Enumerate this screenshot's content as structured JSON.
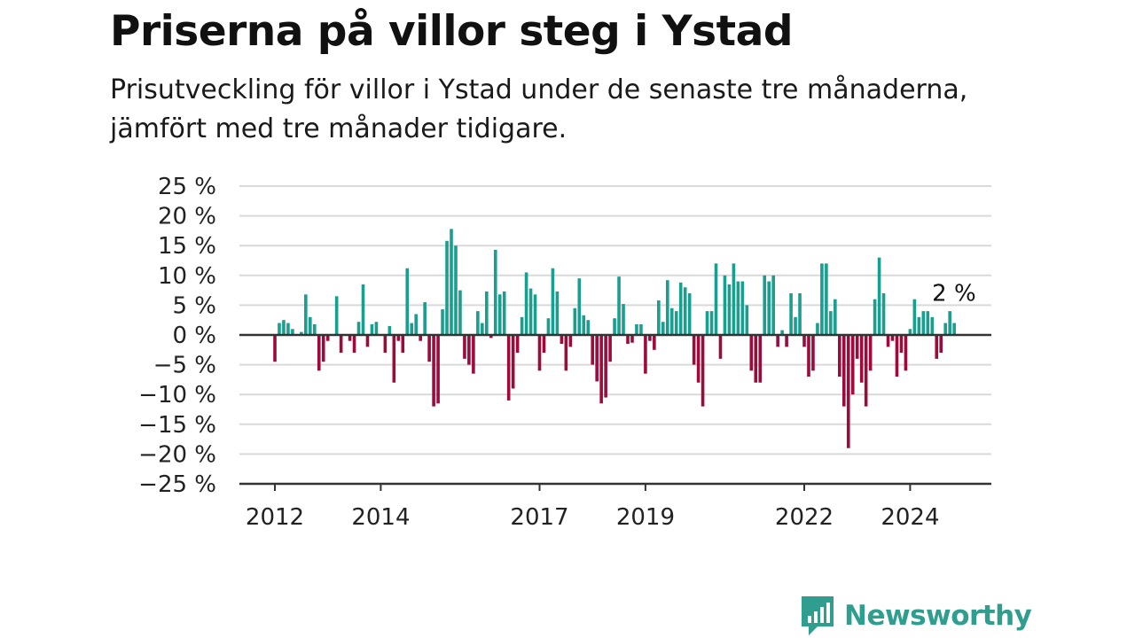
{
  "header": {
    "title": "Priserna på villor steg i Ystad",
    "subtitle": "Prisutveckling för villor i Ystad under de senaste tre månaderna, jämfört med tre månader tidigare."
  },
  "brand": {
    "name": "Newsworthy",
    "icon": "newsworthy-logo-icon",
    "color": "#2f9e8f"
  },
  "colors": {
    "positive": "#1a9e8f",
    "negative": "#9b0c3c",
    "grid": "#d9d9d9",
    "axis": "#333333"
  },
  "chart_data": {
    "type": "bar",
    "title": "Priserna på villor steg i Ystad",
    "ylim": [
      -25,
      25
    ],
    "yticks": [
      25,
      20,
      15,
      10,
      5,
      0,
      -5,
      -10,
      -15,
      -20,
      -25
    ],
    "ytick_labels": [
      "25 %",
      "20 %",
      "15 %",
      "10 %",
      "5 %",
      "0 %",
      "−5 %",
      "−10 %",
      "−15 %",
      "−20 %",
      "−25 %"
    ],
    "xticks": [
      "2012",
      "2014",
      "2017",
      "2019",
      "2022",
      "2024"
    ],
    "annotation": "2 %",
    "start": "2012-01",
    "frequency": "monthly",
    "grid": true,
    "values": [
      -4.5,
      2,
      2.5,
      2,
      1,
      0,
      0.5,
      6.8,
      3,
      1.8,
      -6,
      -4.5,
      -1,
      0,
      6.5,
      -3,
      0,
      -1,
      -3,
      2.2,
      8.5,
      -2,
      1.8,
      2.2,
      0,
      -3,
      1.5,
      -8,
      -1,
      -3,
      11.2,
      2,
      3.5,
      -1,
      5.5,
      -4.5,
      -12,
      -11.5,
      4.3,
      15.8,
      17.8,
      15,
      7.5,
      -4,
      -5,
      -6.5,
      4,
      2,
      7.3,
      -0.5,
      14.3,
      6.8,
      7.3,
      -11,
      -9,
      -3,
      3,
      10.5,
      7.8,
      6.8,
      -6,
      -3,
      2.8,
      11.2,
      7.3,
      -1.5,
      -6,
      -2,
      4.5,
      9.5,
      3.3,
      2.5,
      -5,
      -7.8,
      -11.5,
      -10.5,
      -4.5,
      2.8,
      9.8,
      5.2,
      -1.5,
      -1.3,
      1.8,
      1.8,
      -6.5,
      -1,
      -2.5,
      5.8,
      2.2,
      9.2,
      4.5,
      4,
      8.8,
      8,
      7,
      -5,
      -8,
      -12,
      4,
      4,
      12,
      -4,
      10,
      8.5,
      12,
      9,
      9,
      5,
      -6,
      -8,
      -8,
      10,
      9,
      10,
      -2,
      0.8,
      -2,
      7,
      3,
      7,
      -2,
      -7,
      -6,
      2,
      12,
      12,
      4,
      6,
      -7,
      -12,
      -19,
      -10,
      -4,
      -8,
      -12,
      -6,
      6,
      13,
      7,
      -2,
      -1,
      -7,
      -3,
      -6,
      1,
      6,
      3,
      4,
      4,
      3,
      -4,
      -3,
      2,
      4,
      2
    ]
  }
}
